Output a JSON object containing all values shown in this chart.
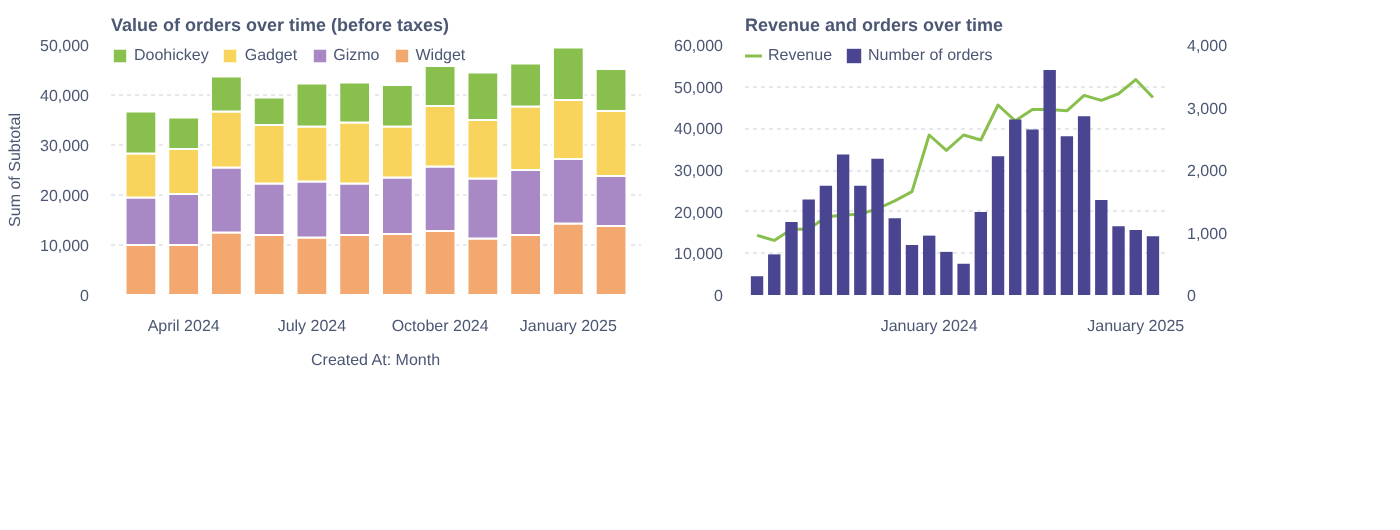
{
  "chart_data": [
    {
      "type": "bar",
      "title": "Value of orders over time (before taxes)",
      "xlabel": "Created At: Month",
      "ylabel": "Sum of Subtotal",
      "stacked": true,
      "categories": [
        null,
        "April 2024",
        null,
        null,
        "July 2024",
        null,
        null,
        "October 2024",
        null,
        null,
        "January 2025",
        null
      ],
      "series": [
        {
          "name": "Widget",
          "color": "#f2a86f",
          "values": [
            10000,
            10000,
            12500,
            12000,
            11500,
            12000,
            12200,
            12800,
            11300,
            12000,
            14300,
            13800
          ]
        },
        {
          "name": "Gizmo",
          "color": "#a989c5",
          "values": [
            9500,
            10200,
            13000,
            10300,
            11200,
            10300,
            11300,
            12900,
            12000,
            13000,
            12900,
            10000
          ]
        },
        {
          "name": "Gadget",
          "color": "#f9d45c",
          "values": [
            8800,
            9000,
            11200,
            11700,
            11000,
            12200,
            10200,
            12100,
            11700,
            12700,
            11800,
            13000
          ]
        },
        {
          "name": "Doohickey",
          "color": "#88bf4d",
          "values": [
            8400,
            6300,
            7000,
            5500,
            8600,
            8000,
            8300,
            8000,
            9500,
            8600,
            10500,
            8400
          ]
        }
      ],
      "ylim": [
        0,
        50000
      ],
      "yticks": [
        0,
        {
          "value": 10000,
          "label": "10,000"
        },
        {
          "value": 20000,
          "label": "20,000"
        },
        {
          "value": 30000,
          "label": "30,000"
        },
        {
          "value": 40000,
          "label": "40,000"
        },
        {
          "value": 50000,
          "label": "50,000"
        }
      ],
      "grid": "y",
      "legend": "top left"
    },
    {
      "type": "bar",
      "title": "Revenue and orders over time",
      "categories": [
        null,
        null,
        null,
        null,
        null,
        null,
        null,
        null,
        null,
        null,
        "January 2024",
        null,
        null,
        null,
        null,
        null,
        null,
        null,
        null,
        null,
        null,
        null,
        "January 2025",
        null
      ],
      "series": [
        {
          "name": "Revenue",
          "type": "line",
          "color": "#88bf4d",
          "values": [
            14300,
            13100,
            15800,
            15800,
            18700,
            19200,
            19400,
            20700,
            22600,
            24800,
            38400,
            34700,
            38400,
            37200,
            45600,
            41800,
            44500,
            44500,
            44200,
            47900,
            46700,
            48300,
            51700,
            47400
          ]
        },
        {
          "name": "Number of orders",
          "type": "bar",
          "axis": "y2",
          "color": "#4a4590",
          "values": [
            300,
            650,
            1170,
            1530,
            1750,
            2250,
            1750,
            2180,
            1230,
            800,
            950,
            690,
            500,
            1330,
            2220,
            2810,
            2650,
            3600,
            2540,
            2860,
            1520,
            1100,
            1040,
            940
          ]
        }
      ],
      "ylim": [
        0,
        60000
      ],
      "yticks": [
        0,
        {
          "value": 10000,
          "label": "10,000"
        },
        {
          "value": 20000,
          "label": "20,000"
        },
        {
          "value": 30000,
          "label": "30,000"
        },
        {
          "value": 40000,
          "label": "40,000"
        },
        {
          "value": 50000,
          "label": "50,000"
        },
        {
          "value": 60000,
          "label": "60,000"
        }
      ],
      "y2lim": [
        0,
        4000
      ],
      "y2ticks": [
        0,
        {
          "value": 1000,
          "label": "1,000"
        },
        {
          "value": 2000,
          "label": "2,000"
        },
        {
          "value": 3000,
          "label": "3,000"
        },
        {
          "value": 4000,
          "label": "4,000"
        }
      ],
      "grid": "y",
      "legend": "top left"
    }
  ]
}
